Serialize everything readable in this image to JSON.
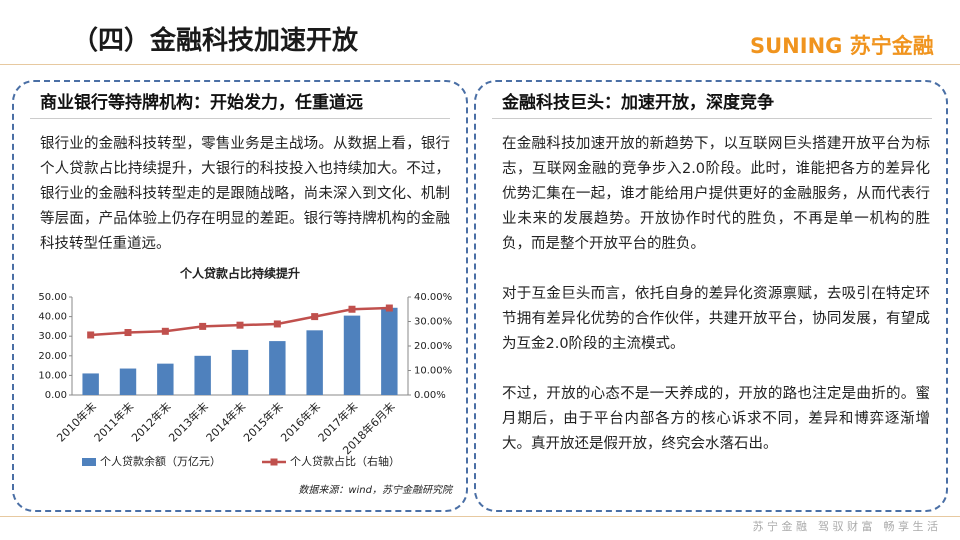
{
  "header": {
    "title": "（四）金融科技加速开放",
    "logo": "SUNING 苏宁金融"
  },
  "left": {
    "heading": "商业银行等持牌机构：开始发力，任重道远",
    "paragraph": "银行业的金融科技转型，零售业务是主战场。从数据上看，银行个人贷款占比持续提升，大银行的科技投入也持续加大。不过，银行业的金融科技转型走的是跟随战略，尚未深入到文化、机制等层面，产品体验上仍存在明显的差距。银行等持牌机构的金融科技转型任重道远。"
  },
  "chart_data": {
    "type": "bar_line",
    "title": "个人贷款占比持续提升",
    "categories": [
      "2010年末",
      "2011年末",
      "2012年末",
      "2013年末",
      "2014年末",
      "2015年末",
      "2016年末",
      "2017年末",
      "2018年6月末"
    ],
    "series": [
      {
        "name": "个人贷款余额（万亿元）",
        "type": "bar",
        "color": "#4f81bd",
        "values": [
          11,
          13.5,
          16,
          20,
          23,
          27.5,
          33,
          40.5,
          44.5
        ]
      },
      {
        "name": "个人贷款占比（右轴）",
        "type": "line",
        "axis": "y2",
        "color": "#c0504d",
        "values": [
          24.5,
          25.5,
          26,
          28,
          28.5,
          29,
          32,
          35,
          35.5
        ]
      }
    ],
    "ylim": [
      0,
      50
    ],
    "yticks": [
      {
        "value": 0,
        "label": "0.00"
      },
      {
        "value": 10,
        "label": "10.00"
      },
      {
        "value": 20,
        "label": "20.00"
      },
      {
        "value": 30,
        "label": "30.00"
      },
      {
        "value": 40,
        "label": "40.00"
      },
      {
        "value": 50,
        "label": "50.00"
      }
    ],
    "y2lim": [
      0,
      40
    ],
    "y2ticks": [
      {
        "value": 0,
        "label": "0.00%"
      },
      {
        "value": 10,
        "label": "10.00%"
      },
      {
        "value": 20,
        "label": "20.00%"
      },
      {
        "value": 30,
        "label": "30.00%"
      },
      {
        "value": 40,
        "label": "40.00%"
      }
    ],
    "grid": false,
    "source": "数据来源：wind，苏宁金融研究院"
  },
  "right": {
    "heading": "金融科技巨头：加速开放，深度竞争",
    "paragraphs": [
      "在金融科技加速开放的新趋势下，以互联网巨头搭建开放平台为标志，互联网金融的竞争步入2.0阶段。此时，谁能把各方的差异化优势汇集在一起，谁才能给用户提供更好的金融服务，从而代表行业未来的发展趋势。开放协作时代的胜负，不再是单一机构的胜负，而是整个开放平台的胜负。",
      "对于互金巨头而言，依托自身的差异化资源禀赋，去吸引在特定环节拥有差异化优势的合作伙伴，共建开放平台，协同发展，有望成为互金2.0阶段的主流模式。",
      "不过，开放的心态不是一天养成的，开放的路也注定是曲折的。蜜月期后，由于平台内部各方的核心诉求不同，差异和博弈逐渐增大。真开放还是假开放，终究会水落石出。"
    ]
  },
  "footer": {
    "slogan": "苏 宁 金 融　驾 驭 财 富　畅 享 生 活"
  }
}
